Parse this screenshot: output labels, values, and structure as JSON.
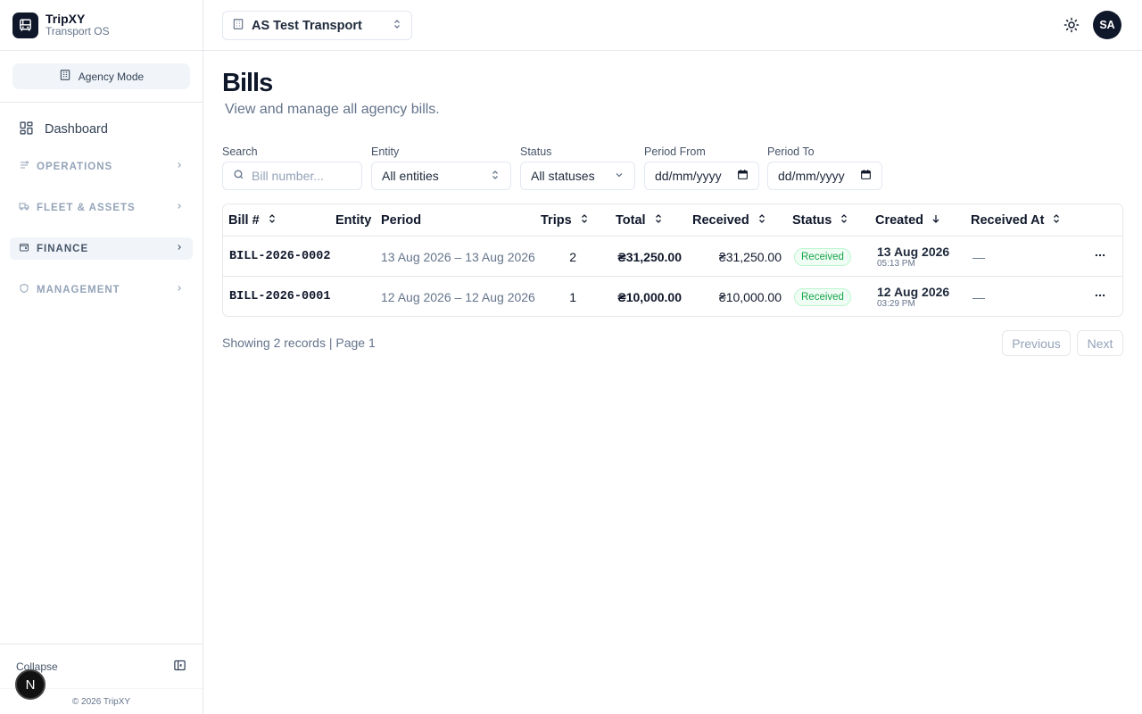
{
  "brand": {
    "name": "TripXY",
    "subtitle": "Transport OS"
  },
  "mode": {
    "label": "Agency Mode"
  },
  "sidebar": {
    "dashboard": "Dashboard",
    "groups": [
      {
        "label": "OPERATIONS",
        "active": false
      },
      {
        "label": "FLEET & ASSETS",
        "active": false
      },
      {
        "label": "FINANCE",
        "active": true
      },
      {
        "label": "MANAGEMENT",
        "active": false
      }
    ],
    "collapse_label": "Collapse",
    "copyright": "© 2026 TripXY",
    "badge_letter": "N"
  },
  "topbar": {
    "agency": "AS Test Transport",
    "avatar": "SA"
  },
  "page": {
    "title": "Bills",
    "subtitle": "View and manage all agency bills."
  },
  "filters": {
    "search": {
      "label": "Search",
      "placeholder": "Bill number..."
    },
    "entity": {
      "label": "Entity",
      "value": "All entities"
    },
    "status": {
      "label": "Status",
      "value": "All statuses"
    },
    "period_from": {
      "label": "Period From",
      "value": "dd/mm/yyyy"
    },
    "period_to": {
      "label": "Period To",
      "value": "dd/mm/yyyy"
    }
  },
  "table": {
    "columns": [
      "Bill #",
      "Entity",
      "Period",
      "Trips",
      "Total",
      "Received",
      "Status",
      "Created",
      "Received At"
    ],
    "rows": [
      {
        "bill": "BILL-2026-0002",
        "entity": "",
        "period": "13 Aug 2026 – 13 Aug 2026",
        "trips": "2",
        "total": "₴31,250.00",
        "received": "₴31,250.00",
        "status": "Received",
        "created_date": "13 Aug 2026",
        "created_time": "05:13 PM",
        "received_at": "—"
      },
      {
        "bill": "BILL-2026-0001",
        "entity": "",
        "period": "12 Aug 2026 – 12 Aug 2026",
        "trips": "1",
        "total": "₴10,000.00",
        "received": "₴10,000.00",
        "status": "Received",
        "created_date": "12 Aug 2026",
        "created_time": "03:29 PM",
        "received_at": "—"
      }
    ]
  },
  "pagination": {
    "summary": "Showing 2 records | Page 1",
    "previous": "Previous",
    "next": "Next"
  },
  "icons": {
    "logo": "bus-icon",
    "mode": "building-icon",
    "dashboard": "grid-icon",
    "theme": "sun-icon",
    "sort": "sort-icon",
    "sort_desc": "arrow-down-icon",
    "more": "ellipsis-icon"
  },
  "colors": {
    "primary": "#0f172a",
    "status_received": "#16a34a",
    "muted": "#64748b"
  }
}
